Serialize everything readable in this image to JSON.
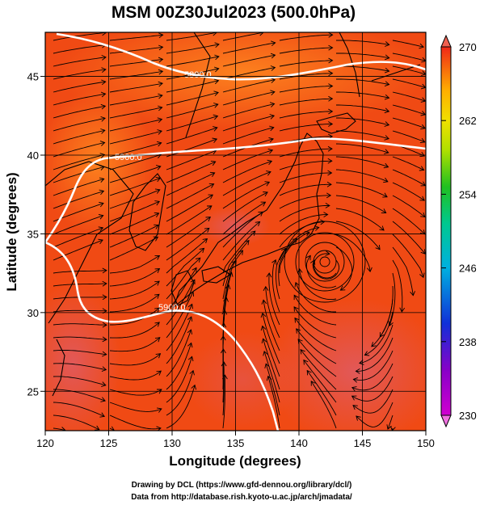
{
  "title": "MSM 00Z30Jul2023 (500.0hPa)",
  "x_axis": {
    "label": "Longitude (degrees)",
    "range": [
      120,
      150
    ],
    "ticks": [
      "120",
      "125",
      "130",
      "135",
      "140",
      "145",
      "150"
    ]
  },
  "y_axis": {
    "label": "Latitude  (degrees)",
    "range": [
      22.5,
      47.8
    ],
    "ticks": [
      "25",
      "30",
      "35",
      "40",
      "45"
    ]
  },
  "colorbar": {
    "range": [
      230,
      270
    ],
    "tick_labels": [
      "270",
      "262",
      "254",
      "246",
      "238",
      "230"
    ]
  },
  "contours": {
    "labels": [
      "5800.0",
      "5900.0",
      "5900.0"
    ],
    "color": "#ffffff"
  },
  "field": {
    "description_colors": {
      "warm": "#f03a10",
      "hot": "#e8453c",
      "cool": "#ff7a1a"
    }
  },
  "credits": {
    "line1": "Drawing by DCL (https://www.gfd-dennou.org/library/dcl/)",
    "line2": "Data from http://database.rish.kyoto-u.ac.jp/arch/jmadata/"
  }
}
